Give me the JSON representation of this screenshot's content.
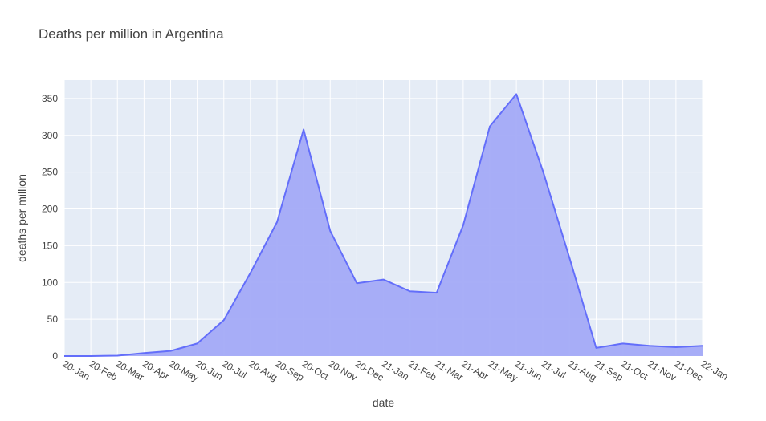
{
  "colors": {
    "plot_background": "#e5ecf6",
    "grid": "#ffffff",
    "line": "#636efa",
    "fill": "#a3aaf7",
    "text": "#444444"
  },
  "chart_data": {
    "type": "area",
    "title": "Deaths per million in Argentina",
    "xlabel": "date",
    "ylabel": "deaths per million",
    "ylim": [
      0,
      375
    ],
    "yticks": [
      0,
      50,
      100,
      150,
      200,
      250,
      300,
      350
    ],
    "grid": true,
    "categories": [
      "20-Jan",
      "20-Feb",
      "20-Mar",
      "20-Apr",
      "20-May",
      "20-Jun",
      "20-Jul",
      "20-Aug",
      "20-Sep",
      "20-Oct",
      "20-Nov",
      "20-Dec",
      "21-Jan",
      "21-Feb",
      "21-Mar",
      "21-Apr",
      "21-May",
      "21-Jun",
      "21-Jul",
      "21-Aug",
      "21-Sep",
      "21-Oct",
      "21-Nov",
      "21-Dec",
      "22-Jan"
    ],
    "series": [
      {
        "values": [
          0,
          0,
          0.5,
          4,
          7,
          17,
          49,
          113,
          182,
          308,
          170,
          99,
          104,
          88,
          86,
          178,
          312,
          356,
          251,
          133,
          11,
          17,
          14,
          12,
          14
        ]
      }
    ]
  }
}
